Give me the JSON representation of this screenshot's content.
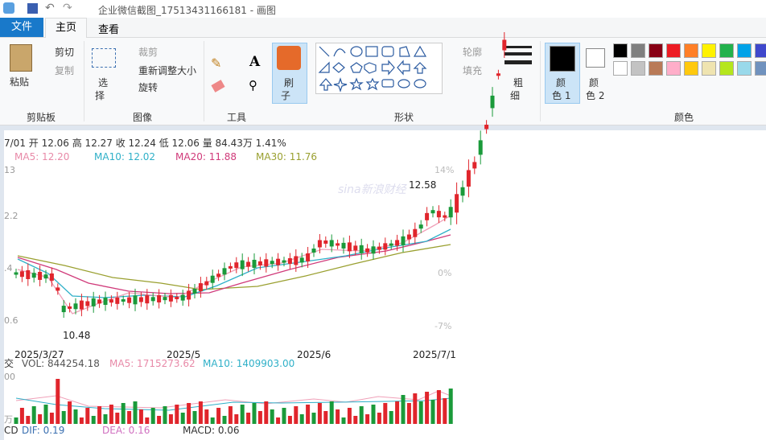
{
  "window": {
    "title": "企业微信截图_17513431166181 - 画图"
  },
  "tabs": [
    "文件",
    "主页",
    "查看"
  ],
  "ribbon": {
    "clipboard": {
      "paste": "粘贴",
      "cut": "剪切",
      "copy": "复制",
      "group": "剪贴板"
    },
    "image": {
      "select": "选",
      "select2": "择",
      "crop": "裁剪",
      "resize": "重新调整大小",
      "rotate": "旋转",
      "group": "图像"
    },
    "tools": {
      "group": "工具"
    },
    "brush": {
      "label": "刷",
      "label2": "子"
    },
    "shapes": {
      "outline": "轮廓",
      "fill": "填充",
      "group": "形状"
    },
    "size": {
      "label": "粗",
      "label2": "细"
    },
    "colors": {
      "color1": "颜",
      "color1b": "色 1",
      "color2": "颜",
      "color2b": "色 2",
      "group": "颜色"
    }
  },
  "canvas": {
    "header": "7/01 开 12.06 高 12.27 收 12.24 低 12.06 量 84.43万 1.41%",
    "ma": [
      "MA5: 12.20",
      "MA10: 12.02",
      "MA20: 11.88",
      "MA30: 11.76"
    ],
    "left_labels": [
      "13",
      "2.2",
      ".4",
      "0.6"
    ],
    "right_labels": [
      "14%",
      "0%",
      "-7%"
    ],
    "high_label": "12.58",
    "low_label": "10.48",
    "dates": [
      "2025/3/27",
      "2025/5",
      "2025/6",
      "2025/7/1"
    ],
    "vol": [
      "交",
      "VOL: 844254.18",
      "MA5: 1715273.62",
      "MA10: 1409903.00"
    ],
    "vol_axis": [
      "00",
      "万"
    ],
    "macd": [
      "CD",
      "DIF: 0.19",
      "DEA: 0.16",
      "MACD: 0.06"
    ],
    "watermark": "sina新浪财经"
  }
}
